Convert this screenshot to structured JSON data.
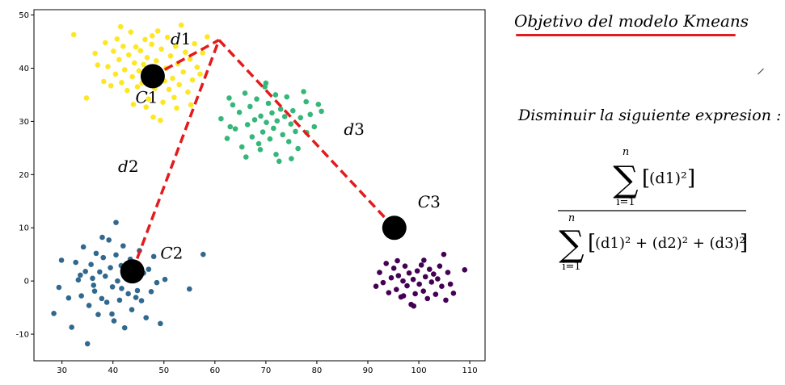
{
  "title": "Objetivo del modelo Kmeans",
  "subtitle": "Disminuir la siguiente expresion :",
  "formula": {
    "sum_upper": "n",
    "sum_lower": "i=1",
    "numerator": "(d1)²",
    "denominator": "(d1)² + (d2)² + (d3)²"
  },
  "colors": {
    "yellow": "#fde725",
    "green": "#35b779",
    "blue": "#31688e",
    "purple": "#440154",
    "centroid": "#000000",
    "dashed_line": "#e41a1c",
    "underline": "#e41a1c"
  },
  "chart_data": {
    "type": "scatter",
    "xlim": [
      24.5,
      113
    ],
    "ylim": [
      -15,
      51
    ],
    "x_ticks": [
      30,
      40,
      50,
      60,
      70,
      80,
      90,
      100,
      110
    ],
    "y_ticks": [
      -10,
      0,
      10,
      20,
      30,
      40,
      50
    ],
    "grid": false,
    "series": [
      {
        "color": "yellow",
        "points": [
          [
            32.3,
            46.3
          ],
          [
            34.8,
            34.4
          ],
          [
            36.5,
            42.8
          ],
          [
            38.2,
            37.5
          ],
          [
            38.5,
            44.8
          ],
          [
            39.0,
            40.3
          ],
          [
            39.6,
            36.7
          ],
          [
            40.1,
            43.2
          ],
          [
            40.5,
            38.9
          ],
          [
            40.8,
            45.5
          ],
          [
            41.2,
            41.6
          ],
          [
            41.7,
            37.3
          ],
          [
            42.0,
            44.1
          ],
          [
            42.3,
            39.7
          ],
          [
            42.8,
            35.8
          ],
          [
            43.1,
            42.5
          ],
          [
            43.5,
            46.8
          ],
          [
            43.8,
            38.4
          ],
          [
            44.2,
            41.0
          ],
          [
            44.5,
            44.0
          ],
          [
            44.8,
            36.5
          ],
          [
            45.1,
            39.5
          ],
          [
            45.4,
            43.3
          ],
          [
            45.7,
            37.2
          ],
          [
            46.0,
            40.7
          ],
          [
            46.3,
            45.4
          ],
          [
            46.7,
            42.0
          ],
          [
            47.0,
            34.2
          ],
          [
            47.3,
            38.7
          ],
          [
            47.6,
            44.5
          ],
          [
            47.9,
            30.8
          ],
          [
            48.2,
            36.2
          ],
          [
            48.5,
            41.4
          ],
          [
            48.8,
            47.0
          ],
          [
            49.1,
            39.2
          ],
          [
            49.5,
            43.6
          ],
          [
            49.8,
            33.6
          ],
          [
            50.1,
            37.6
          ],
          [
            50.4,
            40.0
          ],
          [
            50.7,
            45.8
          ],
          [
            51.0,
            36.0
          ],
          [
            51.3,
            42.3
          ],
          [
            51.7,
            38.1
          ],
          [
            52.0,
            34.5
          ],
          [
            52.3,
            44.1
          ],
          [
            52.7,
            40.8
          ],
          [
            53.0,
            36.9
          ],
          [
            53.4,
            48.1
          ],
          [
            53.8,
            39.3
          ],
          [
            54.2,
            43.0
          ],
          [
            54.7,
            35.5
          ],
          [
            55.1,
            41.7
          ],
          [
            55.6,
            37.8
          ],
          [
            56.0,
            44.6
          ],
          [
            56.5,
            40.2
          ],
          [
            57.1,
            38.9
          ],
          [
            57.6,
            42.9
          ],
          [
            58.5,
            45.9
          ],
          [
            49.3,
            30.2
          ],
          [
            46.5,
            32.7
          ],
          [
            44.0,
            33.2
          ],
          [
            37.0,
            40.6
          ],
          [
            41.5,
            47.8
          ],
          [
            52.5,
            32.5
          ],
          [
            55.3,
            33.1
          ],
          [
            47.7,
            46.1
          ]
        ]
      },
      {
        "color": "green",
        "points": [
          [
            61.2,
            30.5
          ],
          [
            62.4,
            26.8
          ],
          [
            63.5,
            33.1
          ],
          [
            64.0,
            28.6
          ],
          [
            64.8,
            31.7
          ],
          [
            65.3,
            25.2
          ],
          [
            65.9,
            35.3
          ],
          [
            66.4,
            29.4
          ],
          [
            66.9,
            32.8
          ],
          [
            67.3,
            27.1
          ],
          [
            67.8,
            30.3
          ],
          [
            68.2,
            34.2
          ],
          [
            68.6,
            25.8
          ],
          [
            69.0,
            31.0
          ],
          [
            69.4,
            28.0
          ],
          [
            69.8,
            36.5
          ],
          [
            70.1,
            29.8
          ],
          [
            70.5,
            33.4
          ],
          [
            70.8,
            26.7
          ],
          [
            71.2,
            31.6
          ],
          [
            71.5,
            28.7
          ],
          [
            71.9,
            35.0
          ],
          [
            72.2,
            30.1
          ],
          [
            72.6,
            22.5
          ],
          [
            72.9,
            32.3
          ],
          [
            73.3,
            27.5
          ],
          [
            73.7,
            30.9
          ],
          [
            74.1,
            34.6
          ],
          [
            74.5,
            26.2
          ],
          [
            74.9,
            29.5
          ],
          [
            75.3,
            32.0
          ],
          [
            75.8,
            28.1
          ],
          [
            76.3,
            24.9
          ],
          [
            76.8,
            30.7
          ],
          [
            77.4,
            35.6
          ],
          [
            78.0,
            27.9
          ],
          [
            78.7,
            31.3
          ],
          [
            79.5,
            29.0
          ],
          [
            80.3,
            33.2
          ],
          [
            80.9,
            31.9
          ],
          [
            66.1,
            23.3
          ],
          [
            68.9,
            24.7
          ],
          [
            72.0,
            23.8
          ],
          [
            70.0,
            37.2
          ],
          [
            63.0,
            29.0
          ],
          [
            75.0,
            23.0
          ],
          [
            62.8,
            34.4
          ],
          [
            77.9,
            33.7
          ]
        ]
      },
      {
        "color": "blue",
        "points": [
          [
            28.4,
            -6.1
          ],
          [
            29.4,
            -1.2
          ],
          [
            29.9,
            3.9
          ],
          [
            31.3,
            -3.2
          ],
          [
            31.9,
            -8.7
          ],
          [
            32.7,
            3.5
          ],
          [
            33.2,
            0.2
          ],
          [
            33.8,
            -2.8
          ],
          [
            34.2,
            6.4
          ],
          [
            34.6,
            1.8
          ],
          [
            35.0,
            -11.8
          ],
          [
            35.3,
            -4.6
          ],
          [
            35.7,
            3.1
          ],
          [
            36.0,
            0.5
          ],
          [
            36.4,
            -1.9
          ],
          [
            36.7,
            5.2
          ],
          [
            37.1,
            -6.3
          ],
          [
            37.4,
            1.7
          ],
          [
            37.8,
            -3.3
          ],
          [
            38.1,
            4.4
          ],
          [
            38.5,
            0.9
          ],
          [
            38.8,
            -4.0
          ],
          [
            39.2,
            7.7
          ],
          [
            39.5,
            2.5
          ],
          [
            39.9,
            -1.1
          ],
          [
            40.2,
            -7.5
          ],
          [
            40.6,
            4.9
          ],
          [
            40.9,
            0.0
          ],
          [
            41.3,
            -3.6
          ],
          [
            41.6,
            2.9
          ],
          [
            42.0,
            6.6
          ],
          [
            42.3,
            -8.8
          ],
          [
            42.7,
            1.3
          ],
          [
            43.0,
            -2.4
          ],
          [
            43.4,
            4.1
          ],
          [
            43.7,
            -5.4
          ],
          [
            44.1,
            0.7
          ],
          [
            44.4,
            3.0
          ],
          [
            44.8,
            -1.8
          ],
          [
            45.2,
            5.7
          ],
          [
            45.6,
            -3.7
          ],
          [
            46.0,
            1.5
          ],
          [
            46.5,
            -6.9
          ],
          [
            47.0,
            2.2
          ],
          [
            47.5,
            -2.0
          ],
          [
            48.0,
            4.6
          ],
          [
            48.6,
            -0.3
          ],
          [
            49.3,
            -8.0
          ],
          [
            50.2,
            0.3
          ],
          [
            55.0,
            -1.5
          ],
          [
            57.7,
            5.0
          ],
          [
            37.9,
            8.2
          ],
          [
            40.6,
            11.0
          ],
          [
            36.2,
            -0.8
          ],
          [
            39.8,
            -6.2
          ],
          [
            44.5,
            -3.1
          ],
          [
            33.6,
            1.1
          ],
          [
            41.7,
            -1.4
          ]
        ]
      },
      {
        "color": "purple",
        "points": [
          [
            91.6,
            -1.0
          ],
          [
            92.3,
            1.6
          ],
          [
            93.0,
            -0.3
          ],
          [
            93.6,
            3.3
          ],
          [
            94.1,
            -2.2
          ],
          [
            94.6,
            0.6
          ],
          [
            95.1,
            2.4
          ],
          [
            95.6,
            -1.6
          ],
          [
            96.0,
            1.0
          ],
          [
            96.5,
            -3.0
          ],
          [
            96.9,
            0.0
          ],
          [
            97.3,
            2.8
          ],
          [
            97.7,
            -0.9
          ],
          [
            98.1,
            1.5
          ],
          [
            98.5,
            -4.4
          ],
          [
            98.9,
            0.3
          ],
          [
            99.3,
            -2.4
          ],
          [
            99.7,
            1.9
          ],
          [
            100.1,
            -0.6
          ],
          [
            100.5,
            3.0
          ],
          [
            100.9,
            -1.9
          ],
          [
            101.3,
            0.8
          ],
          [
            101.7,
            -3.3
          ],
          [
            102.1,
            2.2
          ],
          [
            102.5,
            -0.2
          ],
          [
            102.9,
            1.3
          ],
          [
            103.3,
            -2.5
          ],
          [
            103.7,
            0.4
          ],
          [
            104.1,
            2.8
          ],
          [
            104.5,
            -1.0
          ],
          [
            104.9,
            5.0
          ],
          [
            105.3,
            -3.6
          ],
          [
            105.7,
            1.6
          ],
          [
            106.2,
            -0.6
          ],
          [
            106.8,
            -2.3
          ],
          [
            109.0,
            2.1
          ],
          [
            99.0,
            -4.7
          ],
          [
            101.0,
            3.9
          ],
          [
            97.0,
            -2.8
          ],
          [
            95.8,
            3.8
          ]
        ]
      }
    ],
    "centroids": [
      {
        "label": "C1",
        "x": 47.8,
        "y": 38.5
      },
      {
        "label": "C2",
        "x": 43.8,
        "y": 1.8
      },
      {
        "label": "C3",
        "x": 95.2,
        "y": 10.0
      }
    ],
    "dashed_lines": [
      [
        [
          47.8,
          38.5
        ],
        [
          60.8,
          45.3
        ]
      ],
      [
        [
          43.8,
          1.8
        ],
        [
          60.8,
          45.3
        ]
      ],
      [
        [
          60.8,
          45.3
        ],
        [
          95.2,
          10.0
        ]
      ]
    ],
    "annotations": [
      {
        "text": "d1",
        "x": 51.3,
        "y": 44.5
      },
      {
        "text": "d2",
        "x": 41.0,
        "y": 20.5
      },
      {
        "text": "d3",
        "x": 85.3,
        "y": 27.5
      },
      {
        "text": "C1",
        "x": 44.4,
        "y": 33.5
      },
      {
        "text": "C2",
        "x": 49.3,
        "y": 4.2
      },
      {
        "text": "C3",
        "x": 99.8,
        "y": 13.8
      }
    ]
  }
}
